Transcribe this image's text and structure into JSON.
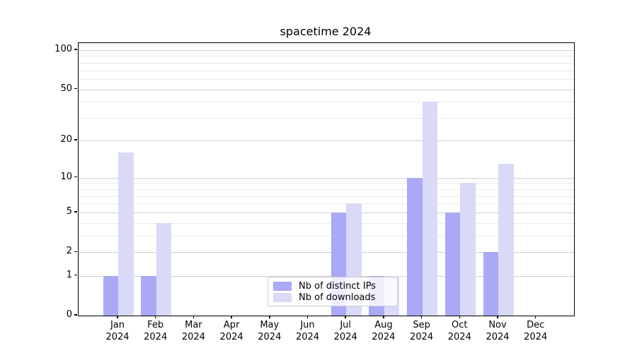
{
  "title": "spacetime 2024",
  "chart_data": {
    "type": "bar",
    "title": "spacetime 2024",
    "categories": [
      "Jan 2024",
      "Feb 2024",
      "Mar 2024",
      "Apr 2024",
      "May 2024",
      "Jun 2024",
      "Jul 2024",
      "Aug 2024",
      "Sep 2024",
      "Oct 2024",
      "Nov 2024",
      "Dec 2024"
    ],
    "series": [
      {
        "name": "Nb of distinct IPs",
        "color": "#a9a9f5",
        "values": [
          1,
          1,
          0,
          0,
          0,
          0,
          5,
          1,
          10,
          5,
          2,
          0
        ]
      },
      {
        "name": "Nb of downloads",
        "color": "#d9d9f8",
        "values": [
          16,
          4,
          0,
          0,
          0,
          0,
          6,
          1,
          40,
          9,
          13,
          0
        ]
      }
    ],
    "xlabel": "",
    "ylabel": "",
    "yscale": "log1p",
    "ylim": [
      0,
      113
    ],
    "y_major_ticks": [
      0,
      1,
      2,
      5,
      10,
      20,
      50,
      100
    ],
    "y_minor_gridlines": [
      3,
      4,
      6,
      7,
      8,
      9,
      30,
      40,
      60,
      70,
      80,
      90
    ],
    "grid": true,
    "legend_position": "lower center"
  },
  "colors": {
    "bar_distinct_ips": "#a9a9f5",
    "bar_downloads": "#d9d9f8",
    "grid_major": "#cfcfcf",
    "grid_minor": "#e9e9e9",
    "axis": "#000000",
    "background": "#ffffff",
    "legend_border": "#cccccc"
  }
}
